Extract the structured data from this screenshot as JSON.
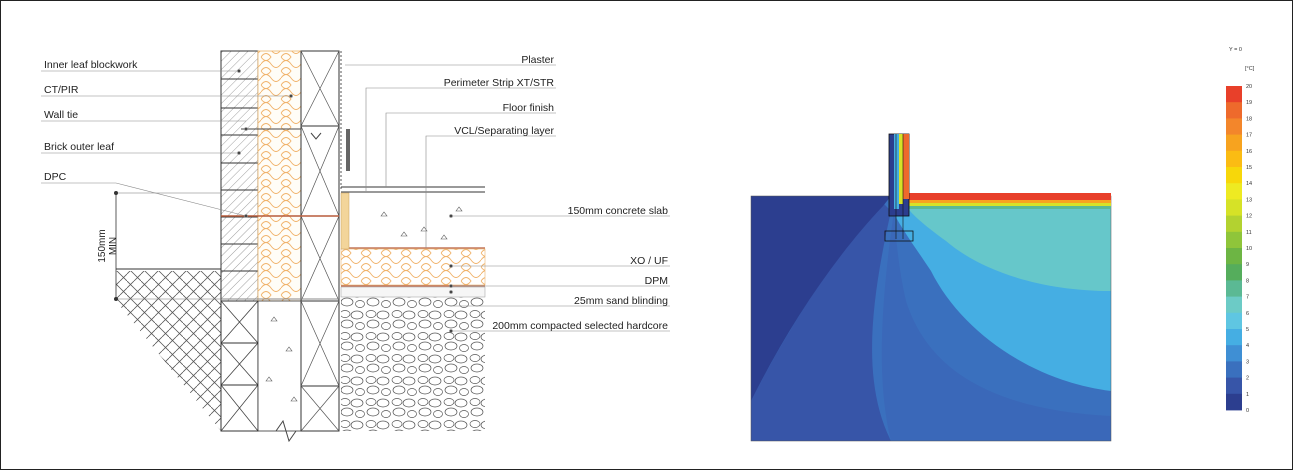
{
  "detail": {
    "left_labels": [
      {
        "id": "inner-leaf",
        "text": "Inner leaf blockwork"
      },
      {
        "id": "ct-pir",
        "text": "CT/PIR"
      },
      {
        "id": "wall-tie",
        "text": "Wall tie"
      },
      {
        "id": "brick-outer",
        "text": "Brick outer leaf"
      },
      {
        "id": "dpc",
        "text": "DPC"
      }
    ],
    "right_labels": [
      {
        "id": "plaster",
        "text": "Plaster"
      },
      {
        "id": "perimeter-strip",
        "text": "Perimeter Strip XT/STR"
      },
      {
        "id": "floor-finish",
        "text": "Floor finish"
      },
      {
        "id": "vcl",
        "text": "VCL/Separating layer"
      },
      {
        "id": "concrete-slab",
        "text": "150mm concrete slab"
      },
      {
        "id": "xo-uf",
        "text": "XO / UF"
      },
      {
        "id": "dpm",
        "text": "DPM"
      },
      {
        "id": "sand-blinding",
        "text": "25mm sand blinding"
      },
      {
        "id": "hardcore",
        "text": "200mm compacted selected hardcore"
      }
    ],
    "dimension": {
      "line1": "150mm",
      "line2": "MIN"
    }
  },
  "thermal": {
    "legend_header": "Y = 0",
    "legend_unit": "[°C]",
    "legend_ticks": [
      "20",
      "19",
      "18",
      "17",
      "16",
      "15",
      "14",
      "13",
      "12",
      "11",
      "10",
      "9",
      "8",
      "7",
      "6",
      "5",
      "4",
      "3",
      "2",
      "1",
      "0"
    ],
    "legend_colors": [
      "#e8402a",
      "#ee6a2c",
      "#f3862b",
      "#f7a31f",
      "#fbbc13",
      "#f7d70a",
      "#eeea22",
      "#d6e227",
      "#b3d230",
      "#8fc53a",
      "#6db544",
      "#55ad5c",
      "#5bb994",
      "#6ccbc6",
      "#5fc6e2",
      "#45aee3",
      "#3f8fd4",
      "#3a70be",
      "#3755a8",
      "#2c3e8f"
    ]
  }
}
